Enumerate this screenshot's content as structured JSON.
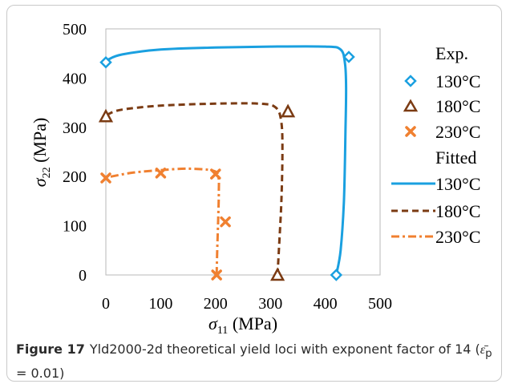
{
  "chart_data": {
    "type": "scatter",
    "title": "",
    "xlabel": "σ11 (MPa)",
    "ylabel": "σ22 (MPa)",
    "xlabel_main": "σ",
    "xlabel_sub": "11",
    "xlabel_unit": " (MPa)",
    "ylabel_main": "σ",
    "ylabel_sub": "22",
    "ylabel_unit": " (MPa)",
    "xlim": [
      0,
      500
    ],
    "ylim": [
      0,
      500
    ],
    "x_ticks": [
      "0",
      "100",
      "200",
      "300",
      "400",
      "500"
    ],
    "y_ticks": [
      "0",
      "100",
      "200",
      "300",
      "400",
      "500"
    ],
    "grid": false,
    "legend_placement": "right",
    "legend_groups": [
      "Exp.",
      "Fitted"
    ],
    "experimental": [
      {
        "name": "130°C",
        "marker": "diamond",
        "color": "#1aa0e0",
        "points": [
          [
            0,
            432
          ],
          [
            443,
            443
          ],
          [
            420,
            0
          ]
        ]
      },
      {
        "name": "180°C",
        "marker": "triangle",
        "color": "#7b3b13",
        "points": [
          [
            0,
            322
          ],
          [
            332,
            332
          ],
          [
            313,
            0
          ]
        ]
      },
      {
        "name": "230°C",
        "marker": "x",
        "color": "#f08030",
        "points": [
          [
            0,
            197
          ],
          [
            100,
            207
          ],
          [
            200,
            205
          ],
          [
            218,
            108
          ],
          [
            202,
            0
          ]
        ]
      }
    ],
    "fitted": [
      {
        "name": "130°C",
        "style": "solid",
        "color": "#1aa0e0",
        "points": [
          [
            420,
            0
          ],
          [
            428,
            50
          ],
          [
            434,
            150
          ],
          [
            437,
            300
          ],
          [
            438,
            380
          ],
          [
            436,
            430
          ],
          [
            428,
            458
          ],
          [
            400,
            464
          ],
          [
            300,
            464
          ],
          [
            200,
            462
          ],
          [
            100,
            458
          ],
          [
            30,
            448
          ],
          [
            5,
            438
          ],
          [
            0,
            432
          ]
        ]
      },
      {
        "name": "180°C",
        "style": "dash",
        "color": "#7b3b13",
        "points": [
          [
            313,
            0
          ],
          [
            316,
            60
          ],
          [
            320,
            150
          ],
          [
            322,
            250
          ],
          [
            320,
            310
          ],
          [
            310,
            340
          ],
          [
            280,
            348
          ],
          [
            200,
            348
          ],
          [
            100,
            344
          ],
          [
            30,
            336
          ],
          [
            5,
            327
          ],
          [
            0,
            322
          ]
        ]
      },
      {
        "name": "230°C",
        "style": "dashdot",
        "color": "#f08030",
        "points": [
          [
            202,
            0
          ],
          [
            203,
            50
          ],
          [
            205,
            120
          ],
          [
            206,
            170
          ],
          [
            205,
            200
          ],
          [
            195,
            212
          ],
          [
            150,
            216
          ],
          [
            100,
            213
          ],
          [
            50,
            208
          ],
          [
            10,
            200
          ],
          [
            0,
            197
          ]
        ]
      }
    ]
  },
  "caption": {
    "label": "Figure 17",
    "text": "Yld2000-2d theoretical yield loci with exponent factor of 14 (",
    "epsilon": "ε̄",
    "epsilon_sub": "p",
    "text_end": " = 0.01)"
  }
}
